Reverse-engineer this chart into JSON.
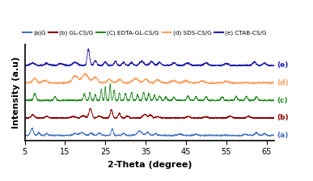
{
  "title": "",
  "xlabel": "2-Theta (degree)",
  "ylabel": "Intensity (a.u)",
  "xlim": [
    5,
    67
  ],
  "xticks": [
    5,
    15,
    25,
    35,
    45,
    55,
    65
  ],
  "colors": {
    "a": "#4472C4",
    "b": "#8B0000",
    "c": "#228B22",
    "d": "#FFA060",
    "e": "#2020AA"
  },
  "labels": {
    "a": "(a)G",
    "b": "(b) GL-CS/G",
    "c": "(C) EDTA-GL-CS/G",
    "d": "(d) SDS-CS/G",
    "e": "(e) CTAB-CS/G"
  },
  "offsets": {
    "a": 0.0,
    "b": 1.4,
    "c": 2.8,
    "d": 4.2,
    "e": 5.6
  },
  "line_width": 0.6,
  "background_color": "#ffffff"
}
